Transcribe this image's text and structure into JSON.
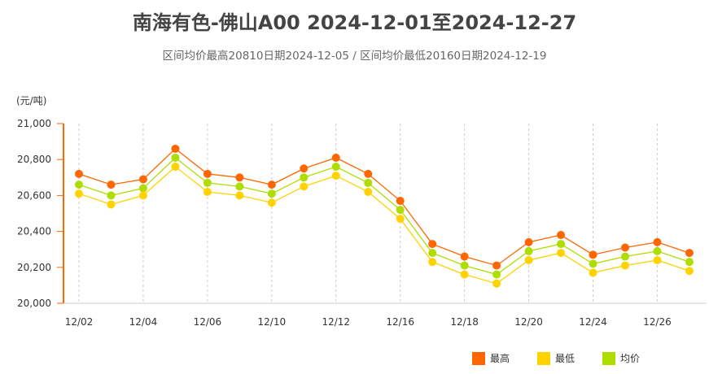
{
  "chart_data": {
    "type": "line",
    "title": "南海有色-佛山A00 2024-12-01至2024-12-27",
    "subtitle": "区间均价最高20810日期2024-12-05 / 区间均价最低20160日期2024-12-19",
    "ylabel": "(元/吨)",
    "ylim": [
      20000,
      21000
    ],
    "yticks": [
      "20,000",
      "20,200",
      "20,400",
      "20,600",
      "20,800",
      "21,000"
    ],
    "ytick_values": [
      20000,
      20200,
      20400,
      20600,
      20800,
      21000
    ],
    "categories": [
      "12/02",
      "12/03",
      "12/04",
      "12/05",
      "12/06",
      "12/09",
      "12/10",
      "12/11",
      "12/12",
      "12/13",
      "12/16",
      "12/17",
      "12/18",
      "12/19",
      "12/20",
      "12/23",
      "12/24",
      "12/25",
      "12/26",
      "12/27"
    ],
    "xtick_labels": [
      "12/02",
      "12/04",
      "12/06",
      "12/10",
      "12/12",
      "12/16",
      "12/18",
      "12/20",
      "12/24",
      "12/26"
    ],
    "grid": "vertical dashed at labeled ticks",
    "legend_position": "bottom-right",
    "series": [
      {
        "name": "最高",
        "color": "#FF6600",
        "values": [
          20720,
          20660,
          20690,
          20860,
          20720,
          20700,
          20660,
          20750,
          20810,
          20720,
          20570,
          20330,
          20260,
          20210,
          20340,
          20380,
          20270,
          20310,
          20340,
          20280
        ]
      },
      {
        "name": "最低",
        "color": "#FFD200",
        "values": [
          20610,
          20550,
          20600,
          20760,
          20620,
          20600,
          20560,
          20650,
          20710,
          20620,
          20470,
          20230,
          20160,
          20110,
          20240,
          20280,
          20170,
          20210,
          20240,
          20180
        ]
      },
      {
        "name": "均价",
        "color": "#AEDD00",
        "values": [
          20660,
          20600,
          20640,
          20810,
          20670,
          20650,
          20610,
          20700,
          20760,
          20670,
          20520,
          20280,
          20210,
          20160,
          20290,
          20330,
          20220,
          20260,
          20290,
          20230
        ]
      }
    ]
  }
}
